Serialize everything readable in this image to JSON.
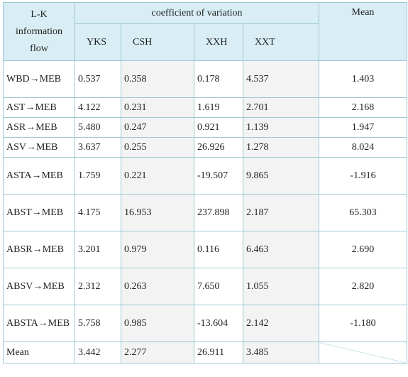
{
  "header": {
    "row_label": "L-K information flow",
    "group_label": "coefficient of variation",
    "mean_label": "Mean",
    "columns": [
      "YKS",
      "CSH",
      "XXH",
      "XXT"
    ]
  },
  "rows": [
    {
      "label": "WBD→MEB",
      "values": [
        "0.537",
        "0.358",
        "0.178",
        "4.537"
      ],
      "mean": "1.403"
    },
    {
      "label": "AST→MEB",
      "values": [
        "4.122",
        "0.231",
        "1.619",
        "2.701"
      ],
      "mean": "2.168"
    },
    {
      "label": "ASR→MEB",
      "values": [
        "5.480",
        "0.247",
        "0.921",
        "1.139"
      ],
      "mean": "1.947"
    },
    {
      "label": "ASV→MEB",
      "values": [
        "3.637",
        "0.255",
        "26.926",
        "1.278"
      ],
      "mean": "8.024"
    },
    {
      "label": "ASTA→MEB",
      "values": [
        "1.759",
        "0.221",
        "-19.507",
        "9.865"
      ],
      "mean": "-1.916"
    },
    {
      "label": "ABST→MEB",
      "values": [
        "4.175",
        "16.953",
        "237.898",
        "2.187"
      ],
      "mean": "65.303"
    },
    {
      "label": "ABSR→MEB",
      "values": [
        "3.201",
        "0.979",
        "0.116",
        "6.463"
      ],
      "mean": "2.690"
    },
    {
      "label": "ABSV→MEB",
      "values": [
        "2.312",
        "0.263",
        "7.650",
        "1.055"
      ],
      "mean": "2.820"
    },
    {
      "label": "ABSTA→MEB",
      "values": [
        "5.758",
        "0.985",
        "-13.604",
        "2.142"
      ],
      "mean": "-1.180"
    }
  ],
  "footer": {
    "label": "Mean",
    "values": [
      "3.442",
      "2.277",
      "26.911",
      "3.485"
    ]
  }
}
